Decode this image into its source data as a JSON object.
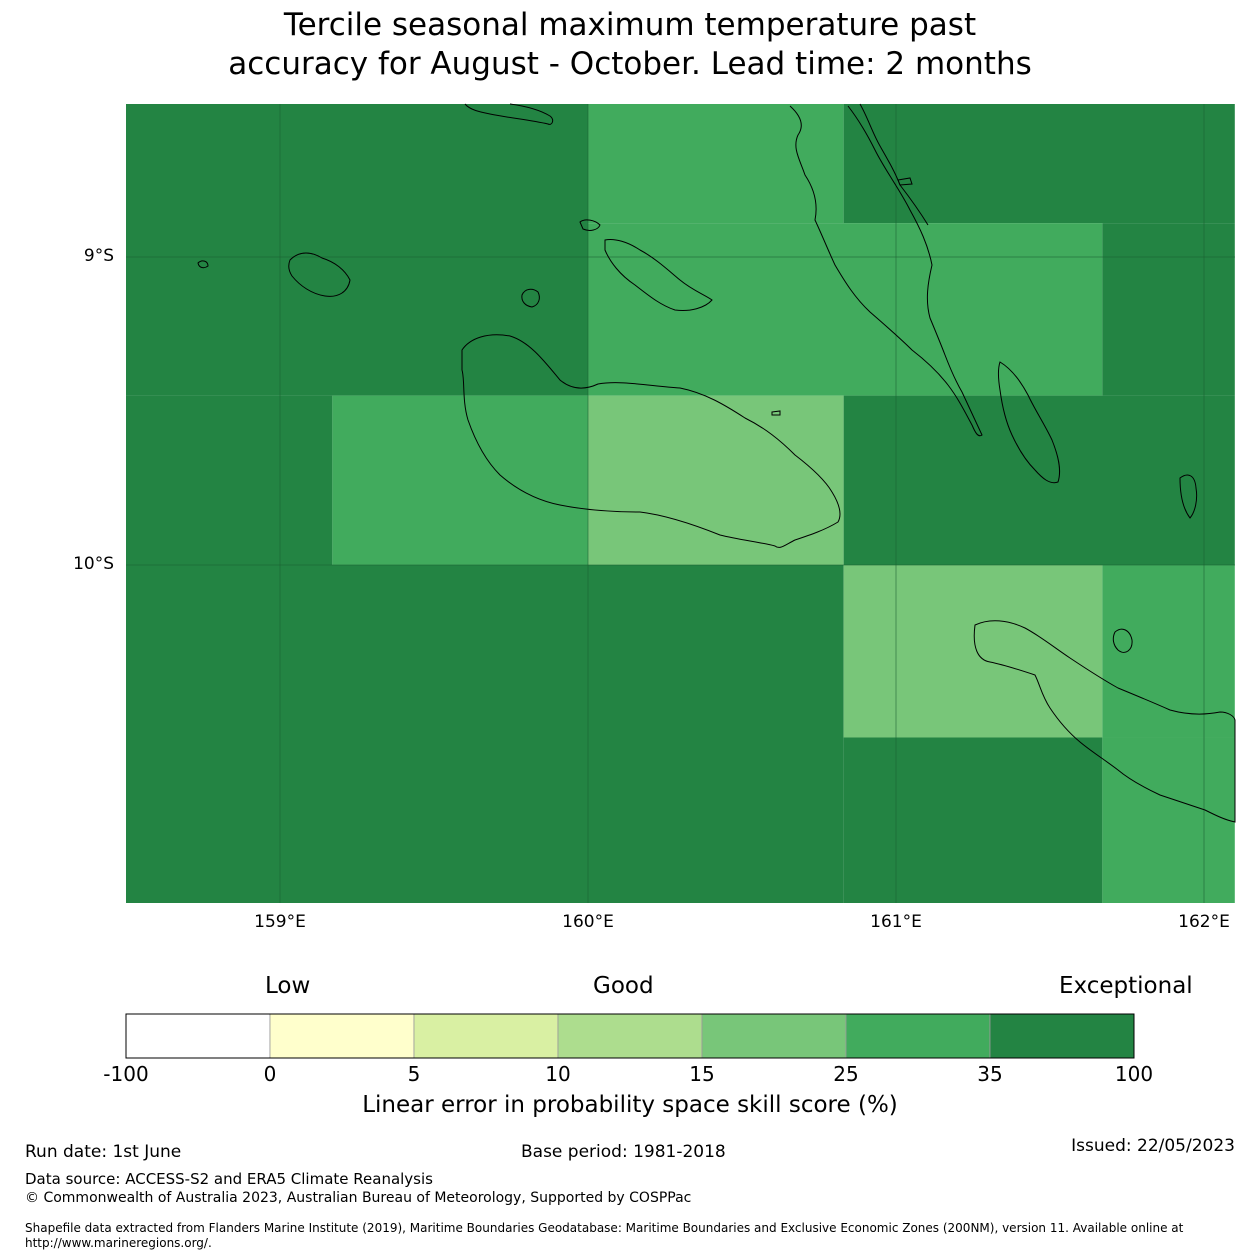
{
  "title": {
    "line1": "Tercile seasonal maximum temperature past",
    "line2": "accuracy for August - October. Lead time: 2 months"
  },
  "map": {
    "lat_labels": [
      "9°S",
      "10°S"
    ],
    "lon_labels": [
      "159°E",
      "160°E",
      "161°E",
      "162°E"
    ],
    "extent": {
      "lon_min": 158.5,
      "lon_max": 162.1,
      "lat_min": -11.1,
      "lat_max": -8.5
    },
    "skill_grid": [
      {
        "lon0": 158.5,
        "lon1": 160.0,
        "lat0": -9.45,
        "lat1": -8.5,
        "class": "35-100"
      },
      {
        "lon0": 160.0,
        "lon1": 160.83,
        "lat0": -8.89,
        "lat1": -8.5,
        "class": "25-35"
      },
      {
        "lon0": 160.83,
        "lon1": 162.1,
        "lat0": -8.89,
        "lat1": -8.5,
        "class": "35-100"
      },
      {
        "lon0": 160.0,
        "lon1": 161.67,
        "lat0": -9.45,
        "lat1": -8.89,
        "class": "25-35"
      },
      {
        "lon0": 161.67,
        "lon1": 162.1,
        "lat0": -9.45,
        "lat1": -8.89,
        "class": "35-100"
      },
      {
        "lon0": 158.5,
        "lon1": 159.17,
        "lat0": -10.0,
        "lat1": -9.45,
        "class": "35-100"
      },
      {
        "lon0": 159.17,
        "lon1": 160.0,
        "lat0": -10.0,
        "lat1": -9.45,
        "class": "25-35"
      },
      {
        "lon0": 160.0,
        "lon1": 160.83,
        "lat0": -10.0,
        "lat1": -9.45,
        "class": "15-25"
      },
      {
        "lon0": 160.83,
        "lon1": 162.1,
        "lat0": -10.0,
        "lat1": -9.45,
        "class": "35-100"
      },
      {
        "lon0": 158.5,
        "lon1": 160.83,
        "lat0": -11.1,
        "lat1": -10.0,
        "class": "35-100"
      },
      {
        "lon0": 160.83,
        "lon1": 161.67,
        "lat0": -10.56,
        "lat1": -10.0,
        "class": "15-25"
      },
      {
        "lon0": 161.67,
        "lon1": 162.1,
        "lat0": -10.56,
        "lat1": -10.0,
        "class": "25-35"
      },
      {
        "lon0": 160.83,
        "lon1": 161.67,
        "lat0": -11.1,
        "lat1": -10.56,
        "class": "35-100"
      },
      {
        "lon0": 161.67,
        "lon1": 162.1,
        "lat0": -11.1,
        "lat1": -10.56,
        "class": "25-35"
      }
    ]
  },
  "colorbar": {
    "categories": [
      "Low",
      "Good",
      "Exceptional"
    ],
    "ticks": [
      "-100",
      "0",
      "5",
      "10",
      "15",
      "25",
      "35",
      "100"
    ],
    "colors": [
      "#ffffff",
      "#ffffcc",
      "#d9f0a3",
      "#addd8e",
      "#78c679",
      "#41ab5d",
      "#238443"
    ],
    "class_colors": {
      "15-25": "#78c679",
      "25-35": "#41ab5d",
      "35-100": "#238443"
    },
    "title": "Linear error in probability space skill score (%)"
  },
  "footer": {
    "run_date": "Run date: 1st June",
    "base_period": "Base period: 1981-2018",
    "issued": "Issued: 22/05/2023",
    "data_source": "Data source: ACCESS-S2 and ERA5 Climate Reanalysis",
    "copyright": "© Commonwealth of Australia 2023, Australian Bureau of Meteorology, Supported by COSPPac",
    "shapefile": "Shapefile data extracted from Flanders Marine Institute (2019), Maritime Boundaries Geodatabase: Maritime Boundaries and Exclusive Economic Zones (200NM), version 11. Available online at http://www.marineregions.org/."
  }
}
